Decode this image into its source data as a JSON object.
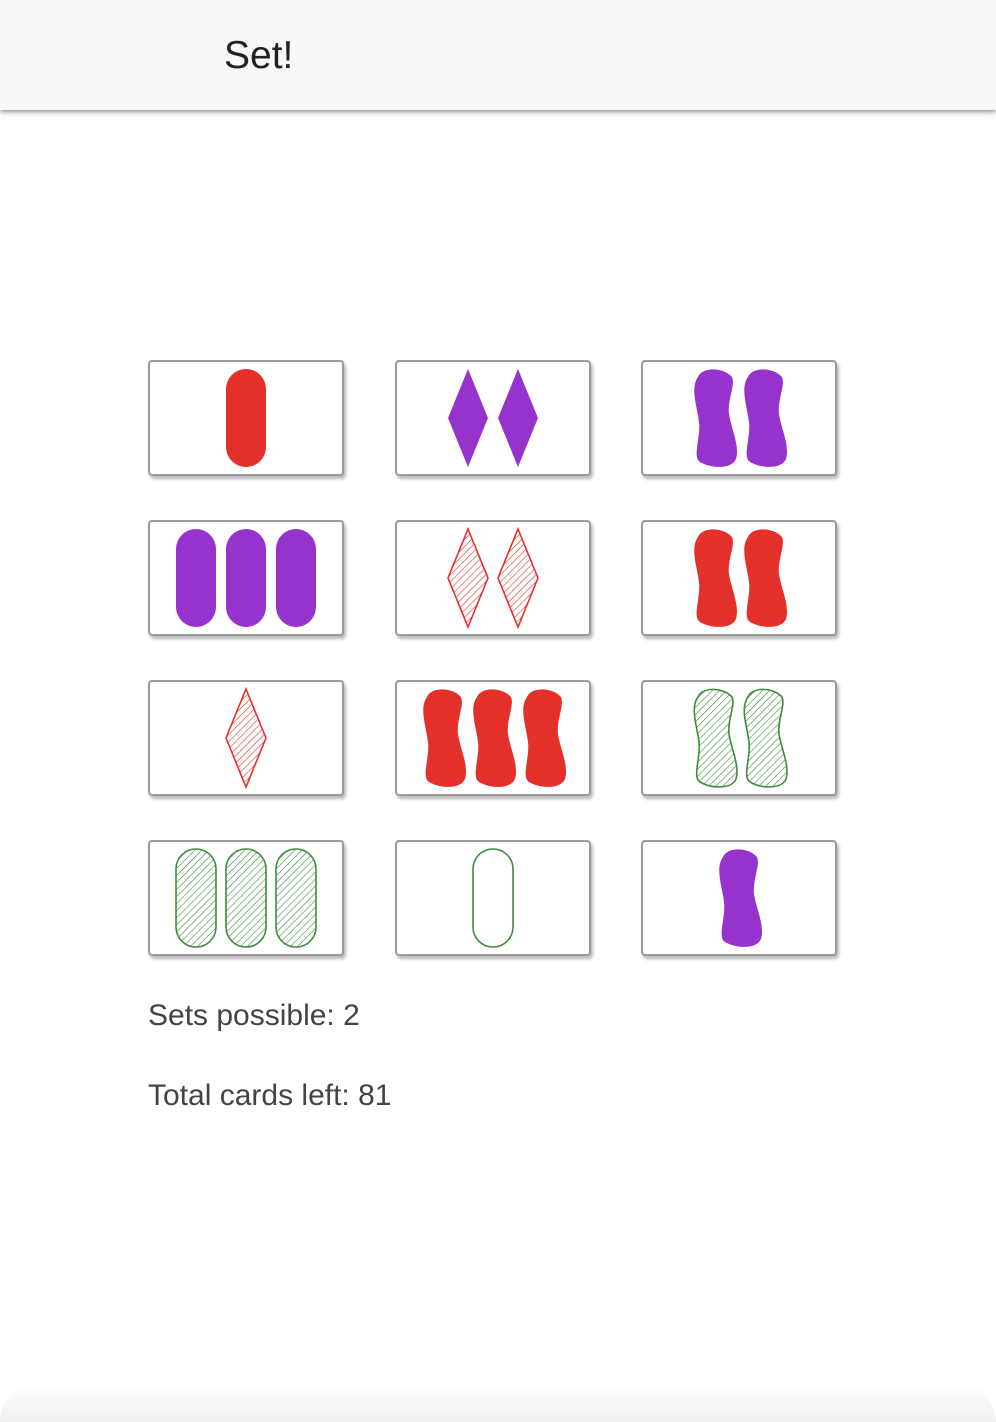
{
  "app": {
    "title": "Set!"
  },
  "colors": {
    "red": "#e4302a",
    "purple": "#9533cc",
    "green": "#3f8c3c"
  },
  "cards": [
    {
      "count": 1,
      "shape": "oval",
      "color": "red",
      "fill": "solid"
    },
    {
      "count": 2,
      "shape": "diamond",
      "color": "purple",
      "fill": "solid"
    },
    {
      "count": 2,
      "shape": "squiggle",
      "color": "purple",
      "fill": "solid"
    },
    {
      "count": 3,
      "shape": "oval",
      "color": "purple",
      "fill": "solid"
    },
    {
      "count": 2,
      "shape": "diamond",
      "color": "red",
      "fill": "striped"
    },
    {
      "count": 2,
      "shape": "squiggle",
      "color": "red",
      "fill": "solid"
    },
    {
      "count": 1,
      "shape": "diamond",
      "color": "red",
      "fill": "striped"
    },
    {
      "count": 3,
      "shape": "squiggle",
      "color": "red",
      "fill": "solid"
    },
    {
      "count": 2,
      "shape": "squiggle",
      "color": "green",
      "fill": "striped"
    },
    {
      "count": 3,
      "shape": "oval",
      "color": "green",
      "fill": "striped"
    },
    {
      "count": 1,
      "shape": "oval",
      "color": "green",
      "fill": "open"
    },
    {
      "count": 1,
      "shape": "squiggle",
      "color": "purple",
      "fill": "solid"
    }
  ],
  "stats": {
    "sets_possible": "Sets possible: 2",
    "cards_left": "Total cards left: 81"
  }
}
